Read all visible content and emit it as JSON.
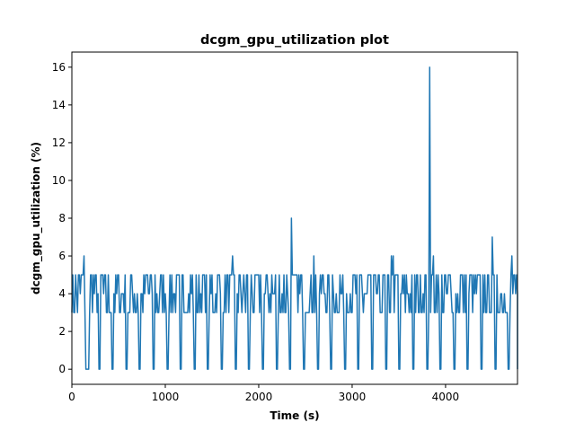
{
  "chart_data": {
    "type": "line",
    "title": "dcgm_gpu_utilization plot",
    "xlabel": "Time (s)",
    "ylabel": "dcgm_gpu_utilization (%)",
    "xlim": [
      0,
      4770
    ],
    "ylim": [
      -0.8,
      16.8
    ],
    "x_ticks": [
      0,
      1000,
      2000,
      3000,
      4000
    ],
    "y_ticks": [
      0,
      2,
      4,
      6,
      8,
      10,
      12,
      14,
      16
    ],
    "grid": false,
    "line_color": "#1f77b4",
    "series": [
      {
        "baseline": 3,
        "low_values": [
          4,
          5
        ],
        "dips": [
          [
            150,
            185
          ],
          [
            285,
            305
          ],
          [
            430,
            445
          ],
          [
            575,
            590
          ],
          [
            720,
            735
          ],
          [
            870,
            885
          ],
          [
            1015,
            1030
          ],
          [
            1160,
            1175
          ],
          [
            1305,
            1320
          ],
          [
            1450,
            1465
          ],
          [
            1600,
            1615
          ],
          [
            1745,
            1760
          ],
          [
            1890,
            1905
          ],
          [
            2040,
            2055
          ],
          [
            2185,
            2200
          ],
          [
            2330,
            2345
          ],
          [
            2480,
            2495
          ],
          [
            2625,
            2640
          ],
          [
            2770,
            2785
          ],
          [
            2915,
            2930
          ],
          [
            3060,
            3075
          ],
          [
            3210,
            3225
          ],
          [
            3355,
            3370
          ],
          [
            3500,
            3515
          ],
          [
            3650,
            3665
          ],
          [
            3795,
            3810
          ],
          [
            3940,
            3955
          ],
          [
            4085,
            4100
          ],
          [
            4230,
            4245
          ],
          [
            4380,
            4395
          ],
          [
            4525,
            4540
          ],
          [
            4670,
            4685
          ]
        ],
        "dip_value": 0,
        "spikes": [
          [
            130,
            6
          ],
          [
            1720,
            6
          ],
          [
            2350,
            8
          ],
          [
            2590,
            6
          ],
          [
            2780,
            6
          ],
          [
            3420,
            6
          ],
          [
            3440,
            6
          ],
          [
            3830,
            16
          ],
          [
            3870,
            6
          ],
          [
            4500,
            7
          ],
          [
            4710,
            6
          ]
        ]
      }
    ]
  }
}
